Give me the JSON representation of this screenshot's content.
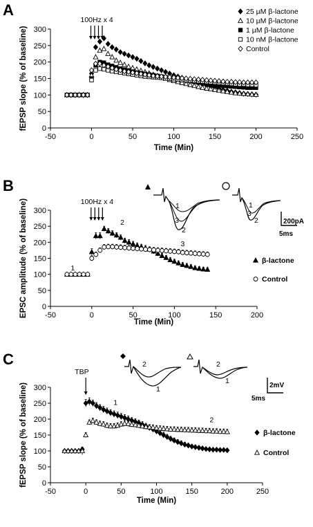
{
  "chart_data": [
    {
      "type": "scatter",
      "panel": "A",
      "ylabel": "fEPSP slope (% of baseline)",
      "xlabel": "Time (Min)",
      "xlim": [
        -50,
        250
      ],
      "ylim": [
        0,
        300
      ],
      "xticks": [
        -50,
        0,
        50,
        100,
        150,
        200,
        250
      ],
      "yticks": [
        0,
        50,
        100,
        150,
        200,
        250,
        300
      ],
      "stimulus_label": "100Hz x 4",
      "legend_position": "top-right",
      "series": [
        {
          "name": "25 µM β-lactone",
          "marker": "diamond-filled",
          "x": [
            -30,
            -25,
            -20,
            -15,
            -10,
            -5,
            0,
            5,
            10,
            15,
            20,
            25,
            30,
            35,
            40,
            45,
            50,
            55,
            60,
            65,
            70,
            75,
            80,
            85,
            90,
            95,
            100,
            105,
            110,
            115,
            120,
            125,
            130,
            135,
            140,
            145,
            150,
            155,
            160,
            165,
            170,
            175,
            180,
            185,
            190,
            195,
            200
          ],
          "y": [
            100,
            100,
            100,
            100,
            100,
            100,
            165,
            245,
            262,
            272,
            255,
            245,
            238,
            230,
            225,
            220,
            215,
            210,
            203,
            196,
            190,
            185,
            180,
            175,
            170,
            165,
            160,
            156,
            152,
            148,
            144,
            140,
            136,
            132,
            128,
            125,
            122,
            119,
            116,
            113,
            110,
            108,
            106,
            104,
            103,
            102,
            101
          ]
        },
        {
          "name": "10 µM β-lactone",
          "marker": "triangle-open",
          "x": [
            -30,
            -25,
            -20,
            -15,
            -10,
            -5,
            0,
            5,
            10,
            15,
            20,
            25,
            30,
            35,
            40,
            45,
            50,
            55,
            60,
            65,
            70,
            75,
            80,
            85,
            90,
            95,
            100,
            105,
            110,
            115,
            120,
            125,
            130,
            135,
            140,
            145,
            150,
            155,
            160,
            165,
            170,
            175,
            180,
            185,
            190,
            195,
            200
          ],
          "y": [
            100,
            100,
            100,
            100,
            100,
            100,
            160,
            215,
            235,
            240,
            225,
            215,
            205,
            198,
            192,
            186,
            182,
            178,
            174,
            170,
            166,
            162,
            158,
            154,
            150,
            146,
            143,
            140,
            137,
            134,
            131,
            128,
            125,
            122,
            120,
            118,
            116,
            114,
            112,
            110,
            108,
            106,
            105,
            104,
            103,
            102,
            101
          ]
        },
        {
          "name": "1 µM β-lactone",
          "marker": "square-filled",
          "x": [
            -30,
            -25,
            -20,
            -15,
            -10,
            -5,
            0,
            5,
            10,
            15,
            20,
            25,
            30,
            35,
            40,
            45,
            50,
            55,
            60,
            65,
            70,
            75,
            80,
            85,
            90,
            95,
            100,
            105,
            110,
            115,
            120,
            125,
            130,
            135,
            140,
            145,
            150,
            155,
            160,
            165,
            170,
            175,
            180,
            185,
            190,
            195,
            200
          ],
          "y": [
            100,
            100,
            100,
            100,
            100,
            100,
            150,
            190,
            200,
            198,
            192,
            188,
            184,
            180,
            177,
            174,
            171,
            168,
            166,
            164,
            162,
            160,
            158,
            156,
            154,
            152,
            150,
            148,
            146,
            144,
            142,
            140,
            138,
            136,
            134,
            132,
            130,
            129,
            128,
            127,
            126,
            125,
            124,
            123,
            122,
            122,
            122
          ]
        },
        {
          "name": "10 nM β-lactone",
          "marker": "square-open",
          "x": [
            -30,
            -25,
            -20,
            -15,
            -10,
            -5,
            0,
            5,
            10,
            15,
            20,
            25,
            30,
            35,
            40,
            45,
            50,
            55,
            60,
            65,
            70,
            75,
            80,
            85,
            90,
            95,
            100,
            105,
            110,
            115,
            120,
            125,
            130,
            135,
            140,
            145,
            150,
            155,
            160,
            165,
            170,
            175,
            180,
            185,
            190,
            195,
            200
          ],
          "y": [
            100,
            100,
            100,
            100,
            100,
            100,
            145,
            175,
            180,
            178,
            175,
            172,
            170,
            168,
            166,
            164,
            162,
            160,
            158,
            156,
            155,
            154,
            153,
            152,
            150,
            149,
            148,
            147,
            146,
            145,
            144,
            143,
            142,
            141,
            140,
            139,
            138,
            137,
            136,
            135,
            134,
            133,
            132,
            132,
            131,
            131,
            130
          ]
        },
        {
          "name": "Control",
          "marker": "diamond-open",
          "x": [
            -30,
            -25,
            -20,
            -15,
            -10,
            -5,
            0,
            5,
            10,
            15,
            20,
            25,
            30,
            35,
            40,
            45,
            50,
            55,
            60,
            65,
            70,
            75,
            80,
            85,
            90,
            95,
            100,
            105,
            110,
            115,
            120,
            125,
            130,
            135,
            140,
            145,
            150,
            155,
            160,
            165,
            170,
            175,
            180,
            185,
            190,
            195,
            200
          ],
          "y": [
            100,
            100,
            100,
            100,
            100,
            100,
            175,
            195,
            195,
            190,
            186,
            182,
            178,
            175,
            172,
            170,
            168,
            166,
            164,
            162,
            160,
            158,
            157,
            156,
            155,
            154,
            153,
            152,
            151,
            150,
            149,
            148,
            147,
            146,
            145,
            144,
            143,
            142,
            141,
            140,
            140,
            139,
            139,
            138,
            138,
            138,
            138
          ]
        }
      ]
    },
    {
      "type": "scatter",
      "panel": "B",
      "ylabel": "EPSC amplitude (% of baseline)",
      "xlabel": "Time (Min)",
      "xlim": [
        -50,
        200
      ],
      "ylim": [
        0,
        300
      ],
      "xticks": [
        -50,
        0,
        50,
        100,
        150,
        200
      ],
      "yticks": [
        0,
        50,
        100,
        150,
        200,
        250,
        300
      ],
      "stimulus_label": "100Hz x 4",
      "point_labels": [
        {
          "text": "1",
          "x": -23,
          "y": 112
        },
        {
          "text": "2",
          "x": 37,
          "y": 255
        },
        {
          "text": "3",
          "x": 110,
          "y": 188
        }
      ],
      "scale_bar": {
        "amplitude": "200pA",
        "time": "5ms"
      },
      "trace_labels": [
        "1",
        "2",
        "3"
      ],
      "legend_position": "right",
      "series": [
        {
          "name": "β-lactone",
          "marker": "triangle-filled",
          "x": [
            -30,
            -25,
            -20,
            -15,
            -10,
            -5,
            0,
            5,
            10,
            15,
            20,
            25,
            30,
            35,
            40,
            45,
            50,
            55,
            60,
            65,
            70,
            75,
            80,
            85,
            90,
            95,
            100,
            105,
            110,
            115,
            120,
            125,
            130,
            135,
            140
          ],
          "y": [
            100,
            100,
            100,
            100,
            100,
            100,
            170,
            220,
            220,
            242,
            235,
            228,
            222,
            215,
            205,
            200,
            195,
            190,
            186,
            182,
            178,
            172,
            165,
            158,
            152,
            145,
            140,
            135,
            130,
            127,
            124,
            120,
            118,
            116,
            115
          ],
          "err": [
            4,
            4,
            4,
            4,
            4,
            4,
            10,
            10,
            10,
            8,
            8,
            8,
            8,
            8,
            8,
            8,
            8,
            8,
            8,
            8,
            8,
            8,
            8,
            7,
            7,
            7,
            7,
            7,
            7,
            7,
            6,
            6,
            6,
            6,
            6
          ]
        },
        {
          "name": "Control",
          "marker": "circle-open",
          "x": [
            -30,
            -25,
            -20,
            -15,
            -10,
            -5,
            0,
            5,
            10,
            15,
            20,
            25,
            30,
            35,
            40,
            45,
            50,
            55,
            60,
            65,
            70,
            75,
            80,
            85,
            90,
            95,
            100,
            105,
            110,
            115,
            120,
            125,
            130,
            135,
            140
          ],
          "y": [
            100,
            100,
            100,
            100,
            100,
            100,
            150,
            162,
            175,
            185,
            186,
            186,
            185,
            184,
            183,
            182,
            181,
            180,
            179,
            178,
            177,
            176,
            175,
            174,
            173,
            172,
            171,
            170,
            168,
            167,
            166,
            165,
            164,
            163,
            162
          ],
          "err": [
            4,
            4,
            4,
            4,
            4,
            4,
            8,
            8,
            8,
            8,
            8,
            8,
            8,
            8,
            8,
            8,
            8,
            8,
            8,
            8,
            8,
            8,
            8,
            8,
            8,
            8,
            8,
            8,
            8,
            8,
            8,
            8,
            8,
            8,
            8
          ]
        }
      ]
    },
    {
      "type": "scatter",
      "panel": "C",
      "ylabel": "fEPSP slope (% of baseline)",
      "xlabel": "Time (Min)",
      "xlim": [
        -50,
        250
      ],
      "ylim": [
        0,
        300
      ],
      "xticks": [
        -50,
        0,
        50,
        100,
        150,
        200,
        250
      ],
      "yticks": [
        0,
        50,
        100,
        150,
        200,
        250,
        300
      ],
      "stimulus_label": "TBP",
      "point_labels": [
        {
          "text": "1",
          "x": 42,
          "y": 245
        },
        {
          "text": "2",
          "x": 178,
          "y": 190
        }
      ],
      "scale_bar": {
        "amplitude": "2mV",
        "time": "5ms"
      },
      "trace_labels": [
        "1",
        "2"
      ],
      "legend_position": "right",
      "series": [
        {
          "name": "β-lactone",
          "marker": "diamond-filled",
          "x": [
            -30,
            -25,
            -20,
            -15,
            -10,
            -5,
            0,
            5,
            10,
            15,
            20,
            25,
            30,
            35,
            40,
            45,
            50,
            55,
            60,
            65,
            70,
            75,
            80,
            85,
            90,
            95,
            100,
            105,
            110,
            115,
            120,
            125,
            130,
            135,
            140,
            145,
            150,
            155,
            160,
            165,
            170,
            175,
            180,
            185,
            190,
            195,
            200
          ],
          "y": [
            100,
            100,
            100,
            100,
            100,
            105,
            250,
            255,
            250,
            242,
            236,
            230,
            225,
            220,
            216,
            212,
            208,
            204,
            200,
            196,
            192,
            188,
            183,
            178,
            173,
            168,
            162,
            156,
            150,
            144,
            138,
            133,
            128,
            124,
            120,
            117,
            114,
            112,
            110,
            108,
            106,
            105,
            104,
            104,
            103,
            103,
            102
          ],
          "err": [
            4,
            4,
            4,
            4,
            4,
            4,
            12,
            12,
            10,
            10,
            10,
            10,
            10,
            10,
            10,
            10,
            10,
            10,
            10,
            9,
            9,
            9,
            9,
            9,
            9,
            9,
            9,
            9,
            9,
            8,
            8,
            8,
            8,
            8,
            7,
            7,
            6,
            6,
            5,
            5,
            5,
            5,
            5,
            5,
            5,
            5,
            5
          ]
        },
        {
          "name": "Control",
          "marker": "triangle-open",
          "x": [
            -30,
            -25,
            -20,
            -15,
            -10,
            -5,
            0,
            5,
            10,
            15,
            20,
            25,
            30,
            35,
            40,
            45,
            50,
            55,
            60,
            65,
            70,
            75,
            80,
            85,
            90,
            95,
            100,
            105,
            110,
            115,
            120,
            125,
            130,
            135,
            140,
            145,
            150,
            155,
            160,
            165,
            170,
            175,
            180,
            185,
            190,
            195,
            200
          ],
          "y": [
            100,
            100,
            100,
            100,
            100,
            100,
            150,
            190,
            195,
            190,
            186,
            184,
            180,
            178,
            178,
            180,
            184,
            186,
            185,
            183,
            182,
            180,
            178,
            176,
            175,
            174,
            172,
            171,
            170,
            169,
            168,
            168,
            167,
            167,
            166,
            166,
            165,
            165,
            164,
            164,
            163,
            163,
            162,
            162,
            161,
            161,
            160
          ],
          "err": [
            4,
            4,
            4,
            4,
            4,
            12,
            8,
            8,
            8,
            8,
            8,
            8,
            8,
            8,
            8,
            8,
            8,
            8,
            8,
            8,
            8,
            8,
            8,
            8,
            8,
            8,
            8,
            8,
            8,
            8,
            8,
            8,
            8,
            8,
            8,
            8,
            8,
            8,
            8,
            8,
            8,
            8,
            8,
            8,
            8,
            8,
            8
          ]
        }
      ]
    }
  ],
  "panels": {
    "a": {
      "letter": "A"
    },
    "b": {
      "letter": "B"
    },
    "c": {
      "letter": "C"
    }
  }
}
